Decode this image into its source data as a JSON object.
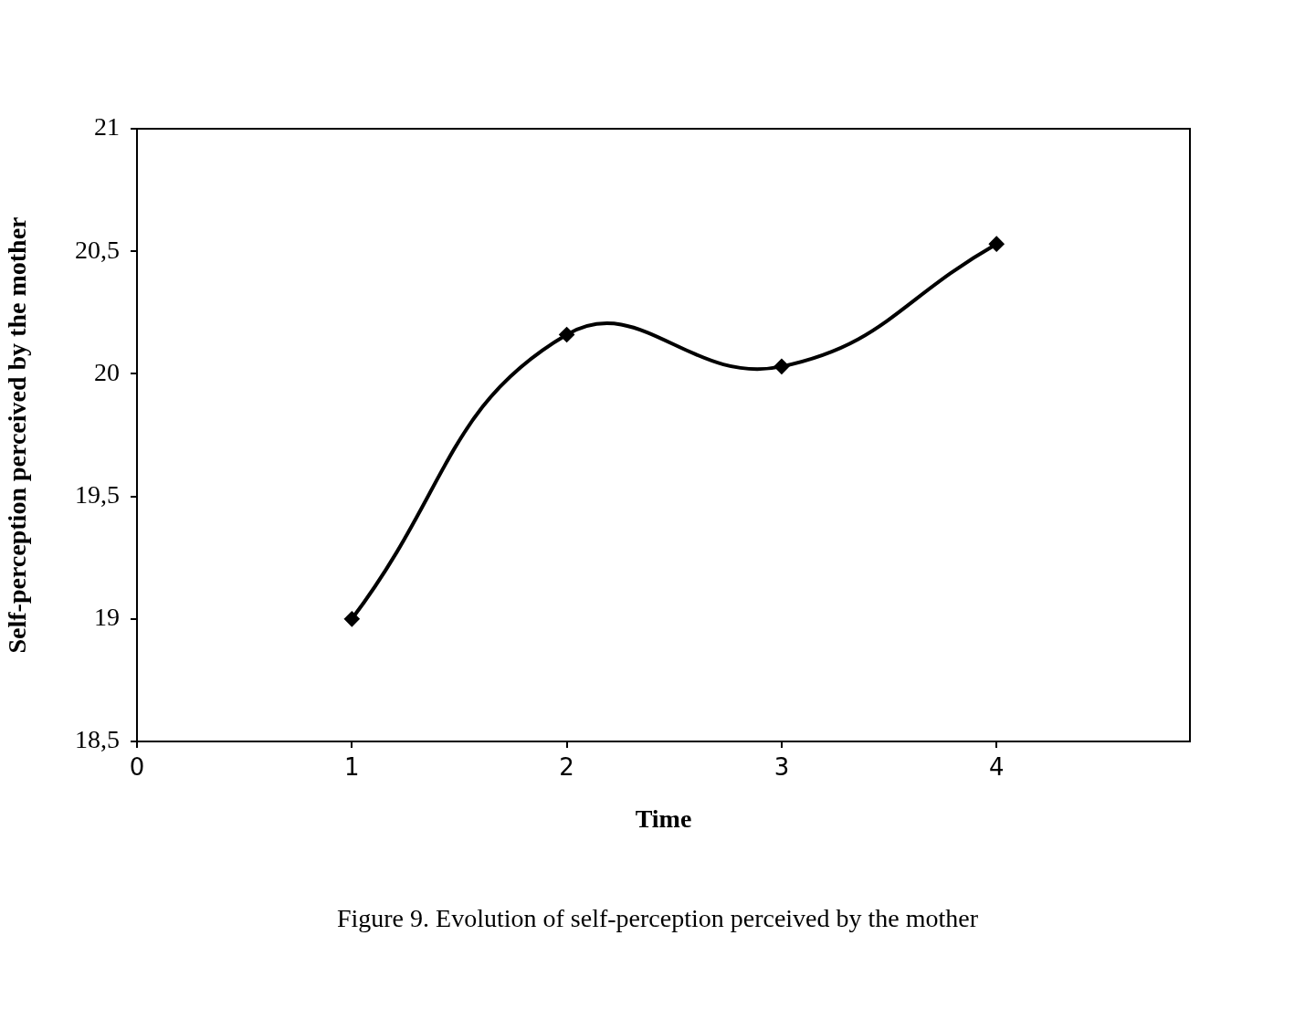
{
  "chart_data": {
    "type": "line",
    "xlabel": "Time",
    "ylabel": "Self-perception perceived by the mother",
    "x": [
      1,
      2,
      3,
      4
    ],
    "series": [
      {
        "color": "#000000",
        "values": [
          19.0,
          20.16,
          20.03,
          20.53
        ]
      }
    ],
    "xlim": [
      0,
      4.9
    ],
    "xticks": [
      0,
      1,
      2,
      3,
      4
    ],
    "ylim": [
      18.5,
      21
    ],
    "yticks": [
      {
        "value": 18.5,
        "label": "18,5"
      },
      {
        "value": 19,
        "label": "19"
      },
      {
        "value": 19.5,
        "label": "19,5"
      },
      {
        "value": 20,
        "label": "20"
      },
      {
        "value": 20.5,
        "label": "20,5"
      },
      {
        "value": 21,
        "label": "21"
      }
    ],
    "grid": false,
    "legend": false,
    "marker": "diamond",
    "line_style": "solid",
    "annotations": [
      "Figure 9. Evolution of self-perception perceived by the mother"
    ]
  }
}
